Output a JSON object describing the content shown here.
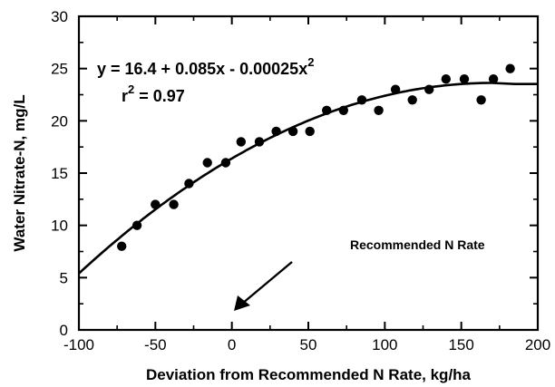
{
  "chart_data": {
    "type": "scatter",
    "title": "",
    "xlabel": "Deviation from Recommended N Rate, kg/ha",
    "ylabel": "Water Nitrate-N, mg/L",
    "xlim": [
      -100,
      200
    ],
    "ylim": [
      0,
      30
    ],
    "x_ticks": [
      "-100",
      "-50",
      "0",
      "50",
      "100",
      "150",
      "200"
    ],
    "y_ticks": [
      "0",
      "5",
      "10",
      "15",
      "20",
      "25",
      "30"
    ],
    "grid": false,
    "equation": {
      "y_part": "y  =  16.4  +  0.085x  -  0.00025x",
      "y_sup": "2",
      "r_part": "r",
      "r_sup": "2",
      "r_value": "  =  0.97"
    },
    "fit": {
      "intercept": 16.4,
      "linear": 0.085,
      "quadratic": -0.00025,
      "x_range": [
        -100,
        170
      ]
    },
    "annotation": "Recommended N Rate",
    "points": [
      {
        "x": -72,
        "y": 8
      },
      {
        "x": -62,
        "y": 10
      },
      {
        "x": -50,
        "y": 12
      },
      {
        "x": -38,
        "y": 12
      },
      {
        "x": -28,
        "y": 14
      },
      {
        "x": -16,
        "y": 16
      },
      {
        "x": -4,
        "y": 16
      },
      {
        "x": 6,
        "y": 18
      },
      {
        "x": 18,
        "y": 18
      },
      {
        "x": 29,
        "y": 19
      },
      {
        "x": 40,
        "y": 19
      },
      {
        "x": 51,
        "y": 19
      },
      {
        "x": 62,
        "y": 21
      },
      {
        "x": 73,
        "y": 21
      },
      {
        "x": 85,
        "y": 22
      },
      {
        "x": 96,
        "y": 21
      },
      {
        "x": 107,
        "y": 23
      },
      {
        "x": 118,
        "y": 22
      },
      {
        "x": 129,
        "y": 23
      },
      {
        "x": 140,
        "y": 24
      },
      {
        "x": 152,
        "y": 24
      },
      {
        "x": 163,
        "y": 22
      },
      {
        "x": 171,
        "y": 24
      },
      {
        "x": 182,
        "y": 25
      }
    ]
  }
}
